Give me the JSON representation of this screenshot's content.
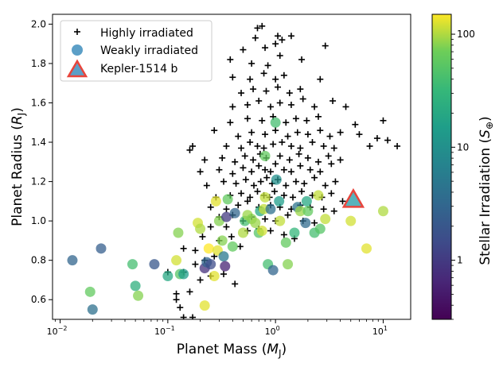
{
  "chart_data": {
    "type": "scatter",
    "xlabel": "Planet Mass (",
    "xlabel_sym": "M",
    "xlabel_sub": "J",
    "xlabel_end": ")",
    "ylabel": "Planet Radius (",
    "ylabel_sym": "R",
    "ylabel_sub": "J",
    "ylabel_end": ")",
    "x_scale": "log",
    "xlim": [
      0.0085,
      18
    ],
    "ylim": [
      0.5,
      2.05
    ],
    "x_ticks": [
      {
        "value": 0.01,
        "base": "10",
        "exp": "−2"
      },
      {
        "value": 0.1,
        "base": "10",
        "exp": "−1"
      },
      {
        "value": 1,
        "base": "10",
        "exp": "0"
      },
      {
        "value": 10,
        "base": "10",
        "exp": "1"
      }
    ],
    "y_ticks": [
      0.6,
      0.8,
      1.0,
      1.2,
      1.4,
      1.6,
      1.8,
      2.0
    ],
    "y_tick_labels": [
      "0.6",
      "0.8",
      "1.0",
      "1.2",
      "1.4",
      "1.6",
      "1.8",
      "2.0"
    ],
    "grid": false,
    "legend": {
      "placement": "top-left",
      "entries": [
        "Highly irradiated",
        "Weakly irradiated",
        "Kepler-1514 b"
      ]
    },
    "colorbar": {
      "label": "Stellar Irradiation (",
      "label_sym": "S",
      "label_sub": "⊕",
      "label_end": ")",
      "scale": "log",
      "range": [
        0.3,
        150
      ],
      "colormap": "viridis",
      "ticks": [
        1,
        10,
        100
      ],
      "tick_labels": [
        "1",
        "10",
        "100"
      ]
    },
    "colors": {
      "highlight_fill": "#3aa6b0",
      "highlight_edge": "#e8453c",
      "legend_circle": "#5c9fc7",
      "legend_triangle_fill": "#5c9fc7"
    },
    "series": [
      {
        "name": "Highly irradiated",
        "marker": "plus",
        "points": [
          [
            0.14,
            0.51
          ],
          [
            0.17,
            0.51
          ],
          [
            0.13,
            0.56
          ],
          [
            0.12,
            0.6
          ],
          [
            0.12,
            0.63
          ],
          [
            0.16,
            0.64
          ],
          [
            0.2,
            0.7
          ],
          [
            0.14,
            0.74
          ],
          [
            0.1,
            0.74
          ],
          [
            0.25,
            0.72
          ],
          [
            0.33,
            0.73
          ],
          [
            0.42,
            0.68
          ],
          [
            0.18,
            0.78
          ],
          [
            0.22,
            0.8
          ],
          [
            0.27,
            0.82
          ],
          [
            0.14,
            0.86
          ],
          [
            0.18,
            0.85
          ],
          [
            0.3,
            0.9
          ],
          [
            0.39,
            0.92
          ],
          [
            0.47,
            0.87
          ],
          [
            0.21,
            0.92
          ],
          [
            0.25,
            0.97
          ],
          [
            0.35,
            0.97
          ],
          [
            0.55,
            0.95
          ],
          [
            0.7,
            0.96
          ],
          [
            0.9,
            0.95
          ],
          [
            1.2,
            0.93
          ],
          [
            1.5,
            0.91
          ],
          [
            0.3,
            1.02
          ],
          [
            0.4,
            1.03
          ],
          [
            0.5,
            1.0
          ],
          [
            0.6,
            1.02
          ],
          [
            0.8,
            1.01
          ],
          [
            1.0,
            1.0
          ],
          [
            1.3,
            1.03
          ],
          [
            1.8,
            1.0
          ],
          [
            2.3,
            0.99
          ],
          [
            0.25,
            1.07
          ],
          [
            0.35,
            1.06
          ],
          [
            0.45,
            1.08
          ],
          [
            0.55,
            1.1
          ],
          [
            0.7,
            1.07
          ],
          [
            0.9,
            1.08
          ],
          [
            1.1,
            1.07
          ],
          [
            1.4,
            1.06
          ],
          [
            1.7,
            1.08
          ],
          [
            2.1,
            1.07
          ],
          [
            2.8,
            1.06
          ],
          [
            3.5,
            1.05
          ],
          [
            0.28,
            1.12
          ],
          [
            0.38,
            1.13
          ],
          [
            0.48,
            1.14
          ],
          [
            0.58,
            1.12
          ],
          [
            0.68,
            1.15
          ],
          [
            0.78,
            1.13
          ],
          [
            0.88,
            1.12
          ],
          [
            0.98,
            1.15
          ],
          [
            1.2,
            1.13
          ],
          [
            1.45,
            1.12
          ],
          [
            1.75,
            1.15
          ],
          [
            2.2,
            1.13
          ],
          [
            2.7,
            1.12
          ],
          [
            3.3,
            1.14
          ],
          [
            4.2,
            1.1
          ],
          [
            0.23,
            1.18
          ],
          [
            0.33,
            1.2
          ],
          [
            0.43,
            1.19
          ],
          [
            0.53,
            1.21
          ],
          [
            0.63,
            1.18
          ],
          [
            0.73,
            1.2
          ],
          [
            0.83,
            1.22
          ],
          [
            0.93,
            1.19
          ],
          [
            1.05,
            1.21
          ],
          [
            1.25,
            1.18
          ],
          [
            1.55,
            1.2
          ],
          [
            1.85,
            1.19
          ],
          [
            2.3,
            1.22
          ],
          [
            2.9,
            1.18
          ],
          [
            3.6,
            1.2
          ],
          [
            0.2,
            1.25
          ],
          [
            0.3,
            1.26
          ],
          [
            0.4,
            1.24
          ],
          [
            0.5,
            1.27
          ],
          [
            0.6,
            1.25
          ],
          [
            0.7,
            1.28
          ],
          [
            0.8,
            1.26
          ],
          [
            0.9,
            1.25
          ],
          [
            1.0,
            1.29
          ],
          [
            1.2,
            1.26
          ],
          [
            1.4,
            1.25
          ],
          [
            1.7,
            1.28
          ],
          [
            2.1,
            1.26
          ],
          [
            2.6,
            1.25
          ],
          [
            3.3,
            1.29
          ],
          [
            0.22,
            1.31
          ],
          [
            0.32,
            1.32
          ],
          [
            0.42,
            1.3
          ],
          [
            0.52,
            1.33
          ],
          [
            0.62,
            1.31
          ],
          [
            0.72,
            1.34
          ],
          [
            0.82,
            1.32
          ],
          [
            1.1,
            1.33
          ],
          [
            1.35,
            1.31
          ],
          [
            1.65,
            1.34
          ],
          [
            2.0,
            1.32
          ],
          [
            2.5,
            1.3
          ],
          [
            3.1,
            1.33
          ],
          [
            4.0,
            1.31
          ],
          [
            0.16,
            1.36
          ],
          [
            0.17,
            1.38
          ],
          [
            0.35,
            1.38
          ],
          [
            0.48,
            1.37
          ],
          [
            0.58,
            1.4
          ],
          [
            0.68,
            1.38
          ],
          [
            0.78,
            1.37
          ],
          [
            0.95,
            1.39
          ],
          [
            1.15,
            1.4
          ],
          [
            1.4,
            1.38
          ],
          [
            1.7,
            1.37
          ],
          [
            2.2,
            1.4
          ],
          [
            2.8,
            1.38
          ],
          [
            3.5,
            1.37
          ],
          [
            7.5,
            1.38
          ],
          [
            13.5,
            1.38
          ],
          [
            0.27,
            1.46
          ],
          [
            0.45,
            1.43
          ],
          [
            0.6,
            1.45
          ],
          [
            0.8,
            1.44
          ],
          [
            1.0,
            1.46
          ],
          [
            1.3,
            1.43
          ],
          [
            1.6,
            1.45
          ],
          [
            2.0,
            1.44
          ],
          [
            2.6,
            1.46
          ],
          [
            3.2,
            1.43
          ],
          [
            4.0,
            1.45
          ],
          [
            6.0,
            1.44
          ],
          [
            8.8,
            1.42
          ],
          [
            11.0,
            1.41
          ],
          [
            0.38,
            1.5
          ],
          [
            0.55,
            1.52
          ],
          [
            0.75,
            1.51
          ],
          [
            0.95,
            1.53
          ],
          [
            1.25,
            1.5
          ],
          [
            1.55,
            1.52
          ],
          [
            1.95,
            1.51
          ],
          [
            2.5,
            1.53
          ],
          [
            5.5,
            1.49
          ],
          [
            10.0,
            1.51
          ],
          [
            0.4,
            1.58
          ],
          [
            0.55,
            1.59
          ],
          [
            0.7,
            1.61
          ],
          [
            0.9,
            1.58
          ],
          [
            1.1,
            1.6
          ],
          [
            1.4,
            1.59
          ],
          [
            1.8,
            1.62
          ],
          [
            2.3,
            1.58
          ],
          [
            3.4,
            1.61
          ],
          [
            4.5,
            1.58
          ],
          [
            0.48,
            1.65
          ],
          [
            0.62,
            1.67
          ],
          [
            0.82,
            1.66
          ],
          [
            1.05,
            1.68
          ],
          [
            1.35,
            1.65
          ],
          [
            1.7,
            1.67
          ],
          [
            0.4,
            1.73
          ],
          [
            0.58,
            1.72
          ],
          [
            0.78,
            1.75
          ],
          [
            1.0,
            1.72
          ],
          [
            1.2,
            1.74
          ],
          [
            2.6,
            1.72
          ],
          [
            0.38,
            1.82
          ],
          [
            0.6,
            1.8
          ],
          [
            0.85,
            1.79
          ],
          [
            1.1,
            1.84
          ],
          [
            1.75,
            1.82
          ],
          [
            0.5,
            1.87
          ],
          [
            0.8,
            1.88
          ],
          [
            1.0,
            1.9
          ],
          [
            0.65,
            1.93
          ],
          [
            1.15,
            1.92
          ],
          [
            2.9,
            1.89
          ],
          [
            1.05,
            1.94
          ],
          [
            1.4,
            1.94
          ],
          [
            0.68,
            1.98
          ],
          [
            0.75,
            1.99
          ]
        ]
      },
      {
        "name": "Weakly irradiated",
        "marker": "circle",
        "points": [
          [
            0.013,
            0.8,
            3.0
          ],
          [
            0.019,
            0.64,
            60
          ],
          [
            0.02,
            0.55,
            4.0
          ],
          [
            0.024,
            0.86,
            2.5
          ],
          [
            0.047,
            0.78,
            40
          ],
          [
            0.05,
            0.67,
            25
          ],
          [
            0.053,
            0.62,
            80
          ],
          [
            0.075,
            0.78,
            2.0
          ],
          [
            0.1,
            0.72,
            20
          ],
          [
            0.12,
            0.8,
            120
          ],
          [
            0.125,
            0.94,
            80
          ],
          [
            0.13,
            0.73,
            50
          ],
          [
            0.14,
            0.73,
            15
          ],
          [
            0.19,
            0.99,
            120
          ],
          [
            0.2,
            0.96,
            100
          ],
          [
            0.22,
            0.57,
            130
          ],
          [
            0.22,
            0.76,
            0.8
          ],
          [
            0.23,
            0.79,
            3.0
          ],
          [
            0.24,
            0.86,
            150
          ],
          [
            0.25,
            0.78,
            1.5
          ],
          [
            0.27,
            0.72,
            130
          ],
          [
            0.28,
            1.1,
            130
          ],
          [
            0.29,
            0.85,
            130
          ],
          [
            0.3,
            1.0,
            80
          ],
          [
            0.32,
            0.9,
            80
          ],
          [
            0.33,
            0.82,
            5
          ],
          [
            0.34,
            0.77,
            0.6
          ],
          [
            0.35,
            1.02,
            1.0
          ],
          [
            0.36,
            1.11,
            60
          ],
          [
            0.4,
            0.87,
            60
          ],
          [
            0.42,
            1.04,
            3.0
          ],
          [
            0.5,
            0.94,
            100
          ],
          [
            0.52,
            1.0,
            40
          ],
          [
            0.55,
            1.03,
            90
          ],
          [
            0.6,
            1.01,
            80
          ],
          [
            0.65,
            0.99,
            90
          ],
          [
            0.7,
            0.94,
            50
          ],
          [
            0.72,
            1.05,
            20
          ],
          [
            0.75,
            0.95,
            120
          ],
          [
            0.78,
            1.06,
            110
          ],
          [
            0.8,
            1.12,
            110
          ],
          [
            0.8,
            1.33,
            60
          ],
          [
            0.85,
            0.78,
            40
          ],
          [
            0.9,
            1.06,
            4.0
          ],
          [
            0.95,
            0.75,
            3.0
          ],
          [
            1.0,
            1.5,
            40
          ],
          [
            1.02,
            1.21,
            10
          ],
          [
            1.08,
            1.1,
            15
          ],
          [
            1.1,
            1.0,
            110
          ],
          [
            1.25,
            0.89,
            60
          ],
          [
            1.3,
            0.78,
            80
          ],
          [
            1.5,
            0.94,
            30
          ],
          [
            1.6,
            1.07,
            4.5
          ],
          [
            1.7,
            1.05,
            90
          ],
          [
            1.9,
            0.99,
            3.5
          ],
          [
            1.95,
            1.1,
            20
          ],
          [
            2.0,
            1.05,
            60
          ],
          [
            2.3,
            0.94,
            40
          ],
          [
            2.5,
            1.13,
            110
          ],
          [
            2.6,
            0.96,
            50
          ],
          [
            2.9,
            1.01,
            110
          ],
          [
            5.0,
            1.0,
            120
          ],
          [
            7.0,
            0.86,
            130
          ],
          [
            10.0,
            1.05,
            100
          ]
        ]
      },
      {
        "name": "Kepler-1514 b",
        "marker": "triangle",
        "points": [
          [
            5.28,
            1.108
          ]
        ]
      }
    ]
  }
}
